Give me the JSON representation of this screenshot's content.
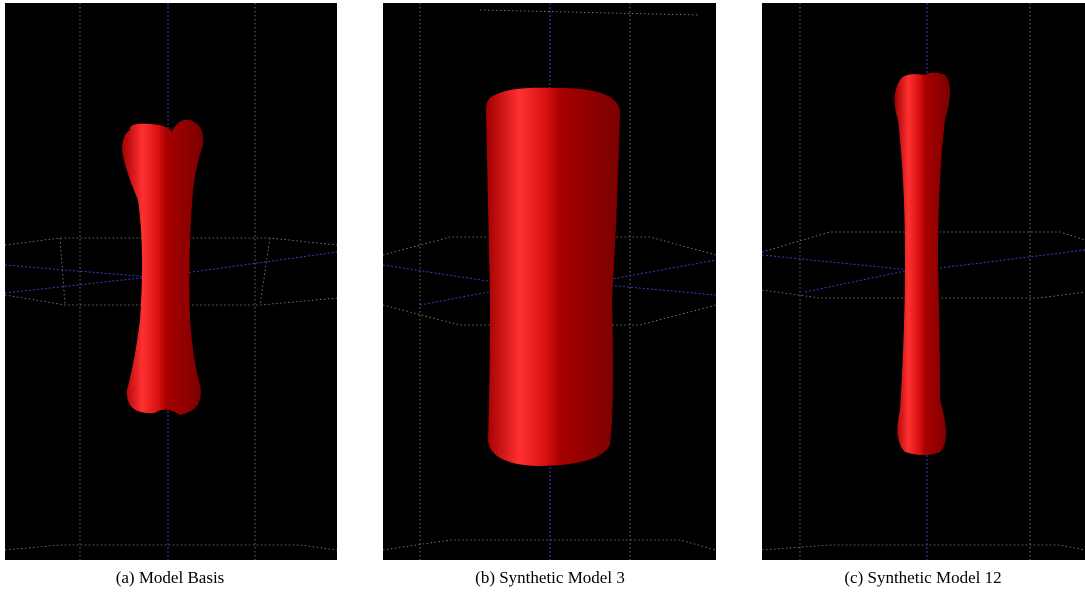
{
  "panels": [
    {
      "caption": "(a) Model Basis"
    },
    {
      "caption": "(b) Synthetic Model 3"
    },
    {
      "caption": "(c) Synthetic Model 12"
    }
  ]
}
